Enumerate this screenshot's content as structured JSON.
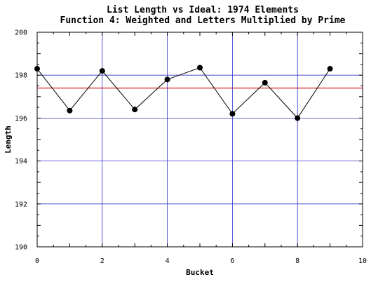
{
  "chart_data": {
    "type": "line",
    "title": "List Length vs Ideal: 1974 Elements",
    "subtitle": "Function 4: Weighted and Letters Multiplied by Prime",
    "xlabel": "Bucket",
    "ylabel": "Length",
    "xlim": [
      0,
      10
    ],
    "ylim": [
      190,
      200
    ],
    "x_ticks": [
      "0",
      "2",
      "4",
      "6",
      "8",
      "10"
    ],
    "y_ticks": [
      "190",
      "192",
      "194",
      "196",
      "198",
      "200"
    ],
    "grid": true,
    "series": [
      {
        "x": [
          0,
          1,
          2,
          3,
          4,
          5,
          6,
          7,
          8,
          9
        ],
        "values": [
          198.3,
          196.35,
          198.2,
          196.4,
          197.8,
          198.35,
          196.2,
          197.65,
          196.0,
          198.3
        ]
      }
    ],
    "reference_line": {
      "value": 197.4
    },
    "colors": {
      "series": "#000000",
      "reference": "#cc0000",
      "grid": "#3333cc"
    }
  }
}
